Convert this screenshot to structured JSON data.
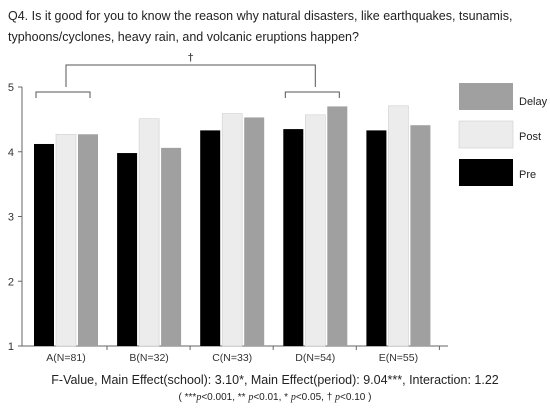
{
  "title": "Q4. Is it good for you to know the reason why natural disasters, like earthquakes, tsunamis, typhoons/cyclones, heavy rain, and volcanic eruptions happen?",
  "stats_line": "F-Value, Main Effect(school): 3.10*, Main Effect(period): 9.04***, Interaction: 1.22",
  "footnote": {
    "open": "( ***",
    "p1": "p",
    "t1": "<0.001,  ** ",
    "p2": "p",
    "t2": "<0.01, * ",
    "p3": "p",
    "t3": "<0.05,  † ",
    "p4": "p",
    "t4": "<0.10 )"
  },
  "significance": [
    {
      "label": "†",
      "from": "A(N=81)",
      "to": "D(N=54)"
    }
  ],
  "chart_data": {
    "type": "bar",
    "title": "",
    "xlabel": "",
    "ylabel": "",
    "ylim": [
      1,
      5
    ],
    "yticks": [
      1,
      2,
      3,
      4,
      5
    ],
    "grid": false,
    "legend_position": "right",
    "categories": [
      "A(N=81)",
      "B(N=32)",
      "C(N=33)",
      "D(N=54)",
      "E(N=55)"
    ],
    "series": [
      {
        "name": "Pre",
        "color": "#000000",
        "values": [
          4.12,
          3.98,
          4.33,
          4.35,
          4.33
        ]
      },
      {
        "name": "Post",
        "color": "#ececec",
        "values": [
          4.27,
          4.51,
          4.59,
          4.57,
          4.71
        ]
      },
      {
        "name": "Delay",
        "color": "#a0a0a0",
        "values": [
          4.27,
          4.06,
          4.53,
          4.7,
          4.41
        ]
      }
    ],
    "legend_order": [
      "Delay",
      "Post",
      "Pre"
    ]
  }
}
